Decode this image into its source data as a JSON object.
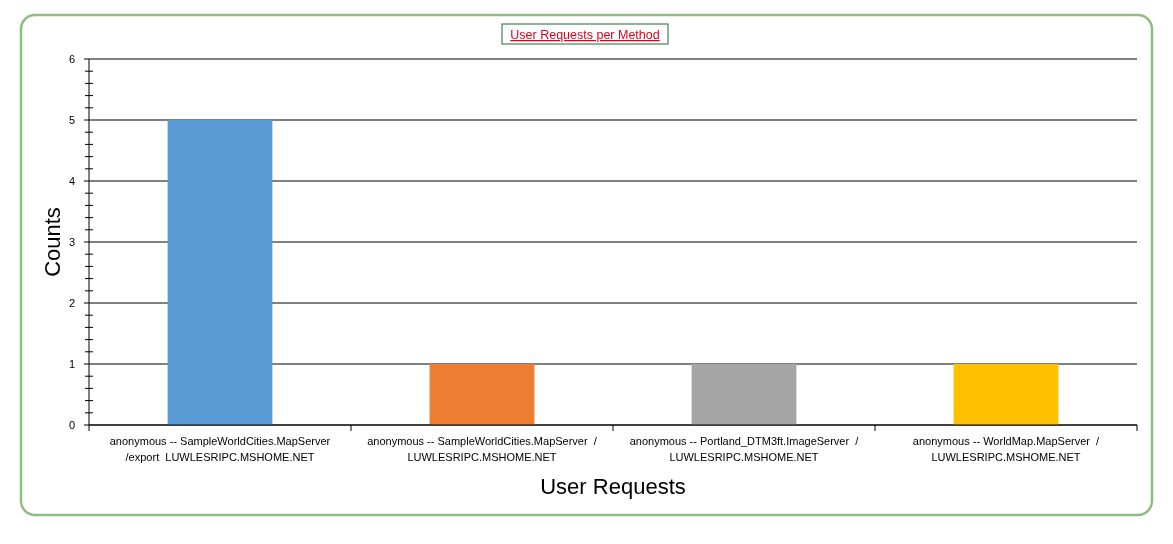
{
  "chart_data": {
    "type": "bar",
    "title": "User Requests per Method",
    "xlabel": "User Requests",
    "ylabel": "Counts",
    "categories": [
      "anonymous -- SampleWorldCities.MapServer\n/export  LUWLESRIPC.MSHOME.NET",
      "anonymous -- SampleWorldCities.MapServer  /\nLUWLESRIPC.MSHOME.NET",
      "anonymous -- Portland_DTM3ft.ImageServer  /\nLUWLESRIPC.MSHOME.NET",
      "anonymous -- WorldMap.MapServer  /\nLUWLESRIPC.MSHOME.NET"
    ],
    "values": [
      5,
      1,
      1,
      1
    ],
    "colors": [
      "#5b9bd5",
      "#ed7d31",
      "#a5a5a5",
      "#ffc000"
    ],
    "ylim": [
      0,
      6
    ],
    "yticks": [
      0,
      {
        "value": 0.2,
        "label": null
      },
      {
        "value": 0.4,
        "label": null
      },
      {
        "value": 0.6,
        "label": null
      },
      {
        "value": 0.8,
        "label": null
      },
      1,
      {
        "value": 1.2,
        "label": null
      },
      {
        "value": 1.4,
        "label": null
      },
      {
        "value": 1.6,
        "label": null
      },
      {
        "value": 1.8,
        "label": null
      },
      2,
      {
        "value": 2.2,
        "label": null
      },
      {
        "value": 2.4,
        "label": null
      },
      {
        "value": 2.6,
        "label": null
      },
      {
        "value": 2.8,
        "label": null
      },
      3,
      {
        "value": 3.2,
        "label": null
      },
      {
        "value": 3.4,
        "label": null
      },
      {
        "value": 3.6,
        "label": null
      },
      {
        "value": 3.8,
        "label": null
      },
      4,
      {
        "value": 4.2,
        "label": null
      },
      {
        "value": 4.4,
        "label": null
      },
      {
        "value": 4.6,
        "label": null
      },
      {
        "value": 4.8,
        "label": null
      },
      5,
      {
        "value": 5.2,
        "label": null
      },
      {
        "value": 5.4,
        "label": null
      },
      {
        "value": 5.6,
        "label": null
      },
      {
        "value": 5.8,
        "label": null
      },
      6
    ],
    "grid": "y"
  }
}
